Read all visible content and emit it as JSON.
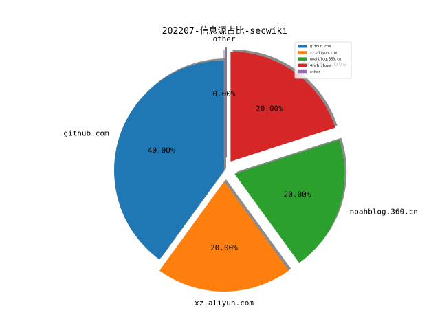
{
  "chart_data": {
    "type": "pie",
    "title": "202207-信息源占比-secwiki",
    "slices": [
      {
        "label": "github.com",
        "value": 40.0,
        "pct_label": "40.00%",
        "color": "#1f77b4",
        "explode": 0.0
      },
      {
        "label": "xz.aliyun.com",
        "value": 20.0,
        "pct_label": "20.00%",
        "color": "#ff7f0e",
        "explode": 0.1
      },
      {
        "label": "noahblog.360.cn",
        "value": 20.0,
        "pct_label": "20.00%",
        "color": "#2ca02c",
        "explode": 0.1
      },
      {
        "label": "4raln.love",
        "value": 20.0,
        "pct_label": "20.00%",
        "color": "#d62728",
        "explode": 0.1
      },
      {
        "label": "other",
        "value": 0.0,
        "pct_label": "0.00%",
        "color": "#9467bd",
        "explode": 0.1
      }
    ],
    "start_angle_deg": 90,
    "counterclockwise": true,
    "shadow": true,
    "legend": {
      "position": "top-right",
      "entries": [
        "github.com",
        "xz.aliyun.com",
        "noahblog.360.cn",
        "4raln.love",
        "other"
      ]
    }
  }
}
